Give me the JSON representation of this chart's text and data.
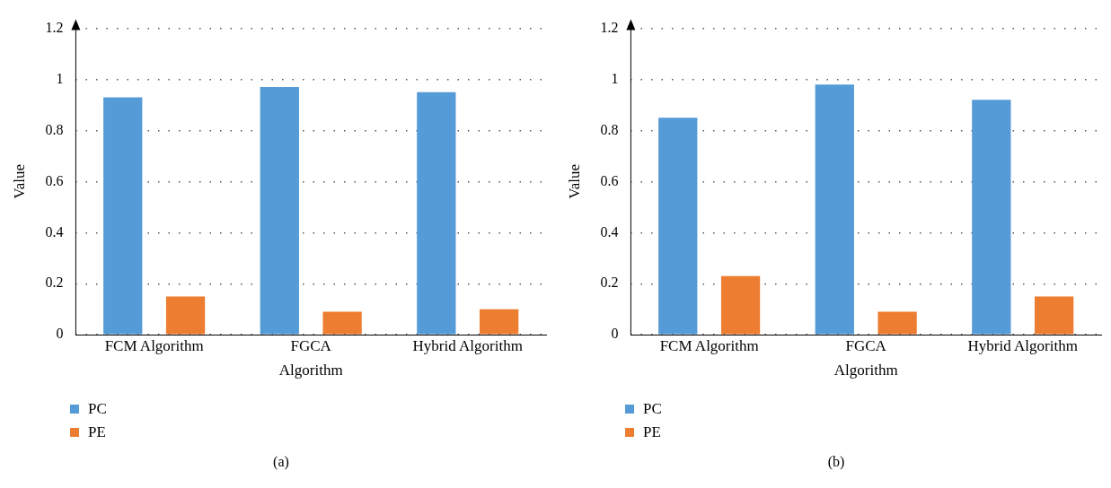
{
  "chart_data": [
    {
      "type": "bar",
      "xlabel": "Algorithm",
      "ylabel": "Value",
      "categories": [
        "FCM Algorithm",
        "FGCA",
        "Hybrid Algorithm"
      ],
      "series": [
        {
          "name": "PC",
          "color": "#559bd7",
          "values": [
            0.93,
            0.97,
            0.95
          ]
        },
        {
          "name": "PE",
          "color": "#ed7d31",
          "values": [
            0.15,
            0.09,
            0.1
          ]
        }
      ],
      "ylim": [
        0,
        1.2
      ],
      "yticks": [
        {
          "value": 0,
          "label": "0"
        },
        {
          "value": 0.2,
          "label": "0.2"
        },
        {
          "value": 0.4,
          "label": "0.4"
        },
        {
          "value": 0.6,
          "label": "0.6"
        },
        {
          "value": 0.8,
          "label": "0.8"
        },
        {
          "value": 1,
          "label": "1"
        },
        {
          "value": 1.2,
          "label": "1.2"
        }
      ],
      "grid": "y",
      "legend": "bottom left",
      "annotations": [
        "(a)"
      ]
    },
    {
      "type": "bar",
      "xlabel": "Algorithm",
      "ylabel": "Value",
      "categories": [
        "FCM Algorithm",
        "FGCA",
        "Hybrid Algorithm"
      ],
      "series": [
        {
          "name": "PC",
          "color": "#559bd7",
          "values": [
            0.85,
            0.98,
            0.92
          ]
        },
        {
          "name": "PE",
          "color": "#ed7d31",
          "values": [
            0.23,
            0.09,
            0.15
          ]
        }
      ],
      "ylim": [
        0,
        1.2
      ],
      "yticks": [
        {
          "value": 0,
          "label": "0"
        },
        {
          "value": 0.2,
          "label": "0.2"
        },
        {
          "value": 0.4,
          "label": "0.4"
        },
        {
          "value": 0.6,
          "label": "0.6"
        },
        {
          "value": 0.8,
          "label": "0.8"
        },
        {
          "value": 1,
          "label": "1"
        },
        {
          "value": 1.2,
          "label": "1.2"
        }
      ],
      "grid": "y",
      "legend": "bottom left",
      "annotations": [
        "(b)"
      ]
    }
  ]
}
